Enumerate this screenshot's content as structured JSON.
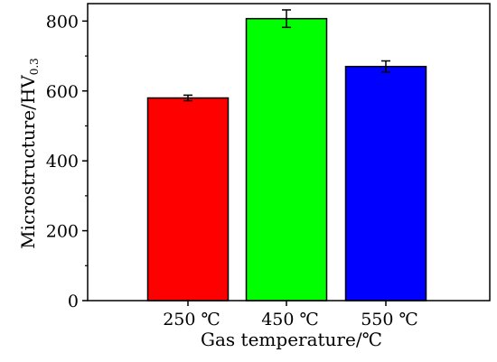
{
  "chart_data": {
    "type": "bar",
    "categories": [
      "250 ℃",
      "450 ℃",
      "550 ℃"
    ],
    "values": [
      580,
      807,
      670
    ],
    "errors": [
      8,
      25,
      16
    ],
    "colors": [
      "#ff0000",
      "#00ff00",
      "#0000ff"
    ],
    "xlabel": "Gas temperature/℃",
    "ylabel_main": "Microstructure/HV",
    "ylabel_sub": "0.3",
    "ylim": [
      0,
      850
    ],
    "yticks": [
      0,
      200,
      400,
      600,
      800
    ],
    "grid": false
  }
}
